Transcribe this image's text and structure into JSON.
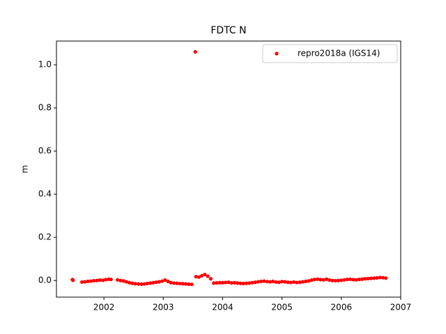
{
  "chart_data": {
    "type": "scatter",
    "title": "FDTC N",
    "ylabel": "m",
    "x": [
      2001.47,
      2001.48,
      2001.63,
      2001.68,
      2001.73,
      2001.78,
      2001.83,
      2001.88,
      2001.93,
      2001.98,
      2002.03,
      2002.08,
      2002.12,
      2002.23,
      2002.28,
      2002.33,
      2002.38,
      2002.43,
      2002.48,
      2002.53,
      2002.58,
      2002.63,
      2002.68,
      2002.73,
      2002.78,
      2002.83,
      2002.88,
      2002.93,
      2002.98,
      2003.03,
      2003.08,
      2003.13,
      2003.18,
      2003.23,
      2003.28,
      2003.33,
      2003.38,
      2003.43,
      2003.48,
      2003.54,
      2003.55,
      2003.6,
      2003.65,
      2003.7,
      2003.75,
      2003.8,
      2003.85,
      2003.9,
      2003.95,
      2004.0,
      2004.05,
      2004.1,
      2004.15,
      2004.2,
      2004.25,
      2004.3,
      2004.35,
      2004.4,
      2004.45,
      2004.5,
      2004.55,
      2004.6,
      2004.65,
      2004.7,
      2004.75,
      2004.8,
      2004.85,
      2004.9,
      2004.95,
      2005.0,
      2005.05,
      2005.1,
      2005.15,
      2005.2,
      2005.25,
      2005.3,
      2005.35,
      2005.4,
      2005.45,
      2005.5,
      2005.55,
      2005.6,
      2005.65,
      2005.7,
      2005.75,
      2005.8,
      2005.85,
      2005.9,
      2005.95,
      2006.0,
      2006.05,
      2006.1,
      2006.15,
      2006.2,
      2006.25,
      2006.3,
      2006.35,
      2006.4,
      2006.45,
      2006.5,
      2006.55,
      2006.6,
      2006.65,
      2006.7,
      2006.75
    ],
    "series": [
      {
        "name": "repro2018a (IGS14)",
        "color": "#ff0000",
        "values": [
          0.004,
          0.001,
          -0.007,
          -0.006,
          -0.004,
          -0.003,
          -0.001,
          0.0,
          0.002,
          0.001,
          0.004,
          0.006,
          0.005,
          0.003,
          0.0,
          -0.002,
          -0.006,
          -0.01,
          -0.013,
          -0.015,
          -0.016,
          -0.017,
          -0.016,
          -0.014,
          -0.012,
          -0.01,
          -0.008,
          -0.006,
          -0.003,
          0.002,
          -0.004,
          -0.01,
          -0.012,
          -0.013,
          -0.014,
          -0.015,
          -0.016,
          -0.017,
          -0.018,
          1.06,
          0.018,
          0.016,
          0.022,
          0.028,
          0.02,
          0.008,
          -0.012,
          -0.011,
          -0.01,
          -0.01,
          -0.009,
          -0.008,
          -0.011,
          -0.01,
          -0.012,
          -0.013,
          -0.014,
          -0.013,
          -0.012,
          -0.01,
          -0.008,
          -0.006,
          -0.004,
          -0.003,
          -0.005,
          -0.006,
          -0.004,
          -0.007,
          -0.008,
          -0.005,
          -0.006,
          -0.008,
          -0.009,
          -0.007,
          -0.009,
          -0.008,
          -0.006,
          -0.004,
          -0.002,
          0.002,
          0.005,
          0.006,
          0.004,
          0.003,
          0.006,
          0.002,
          0.0,
          -0.001,
          0.0,
          0.001,
          0.003,
          0.005,
          0.006,
          0.004,
          0.003,
          0.005,
          0.006,
          0.008,
          0.009,
          0.01,
          0.011,
          0.012,
          0.014,
          0.013,
          0.011
        ]
      }
    ],
    "xlim": [
      2001.2,
      2007.0
    ],
    "ylim": [
      -0.077,
      1.11
    ],
    "xticks": [
      2002,
      2003,
      2004,
      2005,
      2006,
      2007
    ],
    "yticks": [
      {
        "value": 0,
        "label": "0.0"
      },
      {
        "value": 0.2,
        "label": "0.2"
      },
      {
        "value": 0.4,
        "label": "0.4"
      },
      {
        "value": 0.6,
        "label": "0.6"
      },
      {
        "value": 0.8,
        "label": "0.8"
      },
      {
        "value": 1.0,
        "label": "1.0"
      }
    ],
    "grid": false,
    "legend": "upper right"
  }
}
